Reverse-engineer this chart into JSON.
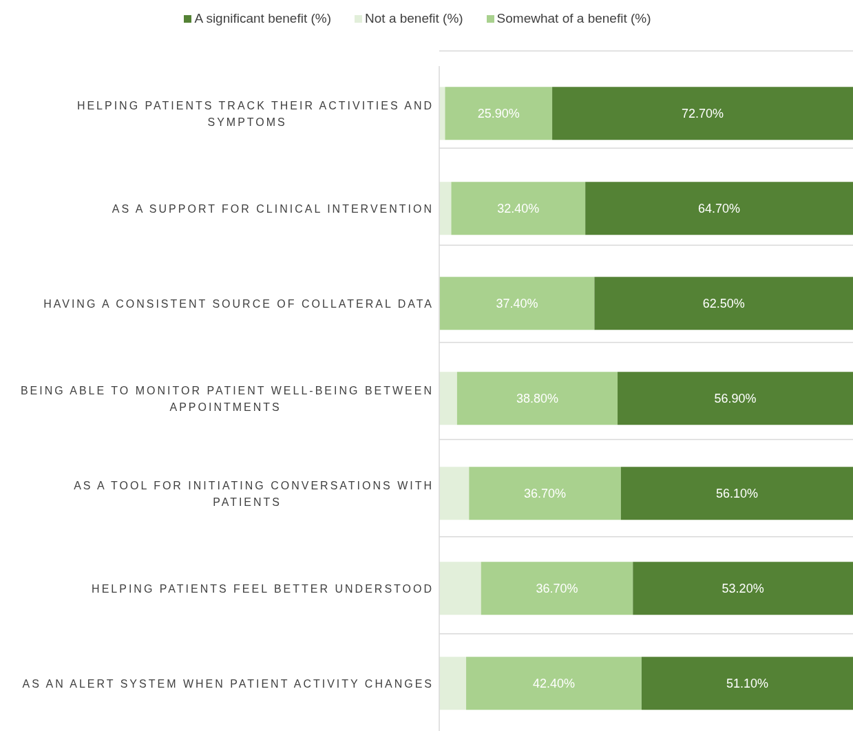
{
  "chart_data": {
    "type": "bar",
    "orientation": "horizontal",
    "stacked": true,
    "categories": [
      "HELPING PATIENTS TRACK THEIR ACTIVITIES AND SYMPTOMS",
      "AS A SUPPORT FOR CLINICAL INTERVENTION",
      "HAVING A CONSISTENT SOURCE OF COLLATERAL DATA",
      "BEING ABLE TO MONITOR PATIENT WELL-BEING BETWEEN APPOINTMENTS",
      "AS A TOOL FOR INITIATING CONVERSATIONS WITH PATIENTS",
      "HELPING PATIENTS FEEL BETTER UNDERSTOOD",
      "AS AN ALERT SYSTEM WHEN PATIENT ACTIVITY CHANGES"
    ],
    "series": [
      {
        "name": "Not a benefit (%)",
        "color": "#e2efda",
        "values": [
          1.4,
          2.9,
          0.1,
          4.3,
          7.2,
          10.1,
          6.5
        ]
      },
      {
        "name": "Somewhat of a benefit (%)",
        "color": "#a9d18e",
        "values": [
          25.9,
          32.4,
          37.4,
          38.8,
          36.7,
          36.7,
          42.4
        ],
        "value_labels": [
          "25.90%",
          "32.40%",
          "37.40%",
          "38.80%",
          "36.70%",
          "36.70%",
          "42.40%"
        ]
      },
      {
        "name": "A significant benefit (%)",
        "color": "#548235",
        "values": [
          72.7,
          64.7,
          62.5,
          56.9,
          56.1,
          53.2,
          51.1
        ],
        "value_labels": [
          "72.70%",
          "64.70%",
          "62.50%",
          "56.90%",
          "56.10%",
          "53.20%",
          "51.10%"
        ]
      }
    ],
    "xlim": [
      0,
      100
    ],
    "tick_labels": "y",
    "grid": "y",
    "legend": "top"
  }
}
